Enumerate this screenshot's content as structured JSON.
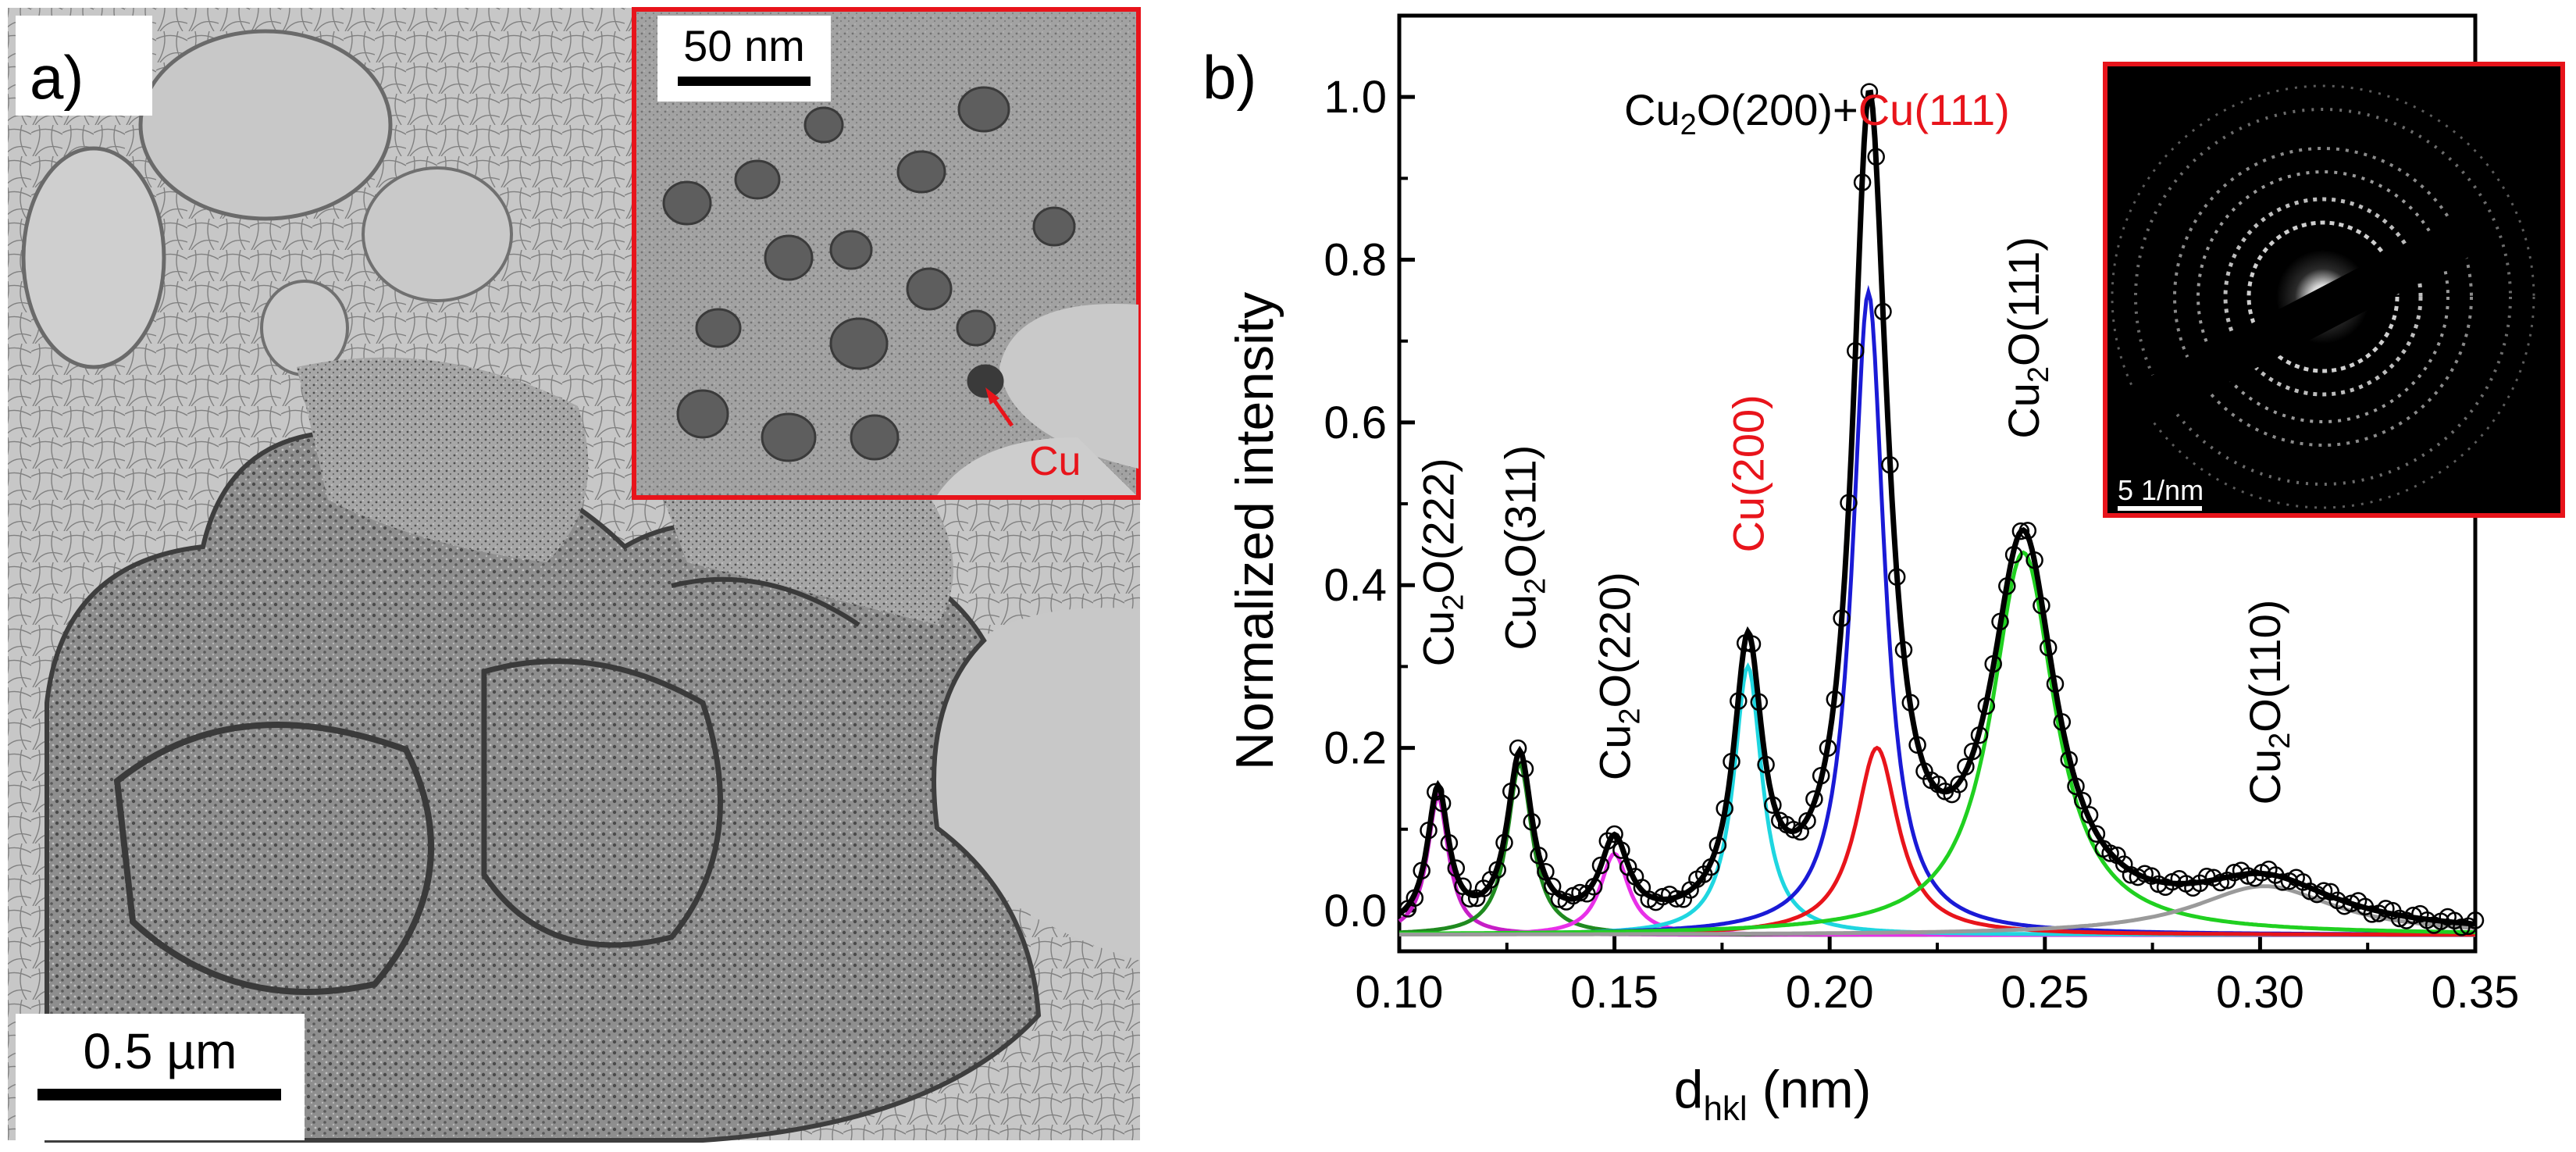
{
  "panel_a": {
    "label": "a)",
    "scale_bar": "0.5 µm",
    "inset": {
      "scale_bar": "50 nm",
      "annotation": "Cu"
    }
  },
  "panel_b": {
    "label": "b)",
    "saed_inset": {
      "scale_bar": "5 1/nm"
    },
    "peak_labels": [
      {
        "prefix": "Cu",
        "sub": "2",
        "suffix": "O(222)",
        "color": "#000000"
      },
      {
        "prefix": "Cu",
        "sub": "2",
        "suffix": "O(311)",
        "color": "#000000"
      },
      {
        "prefix": "Cu",
        "sub": "2",
        "suffix": "O(220)",
        "color": "#000000"
      },
      {
        "prefix": "Cu(200)",
        "sub": "",
        "suffix": "",
        "color": "#e8141b"
      },
      {
        "prefix": "Cu",
        "sub": "2",
        "suffix": "O(111)",
        "color": "#000000"
      },
      {
        "prefix": "Cu",
        "sub": "2",
        "suffix": "O(110)",
        "color": "#000000"
      }
    ],
    "top_label": {
      "black_prefix": "Cu",
      "black_sub": "2",
      "black_suffix": "O(200)+",
      "red_part": "Cu(111)"
    }
  },
  "chart_data": {
    "type": "line",
    "title": "",
    "xlabel_main": "d",
    "xlabel_sub": "hkl",
    "xlabel_unit": " (nm)",
    "ylabel": "Normalized intensity",
    "xlim": [
      0.1,
      0.35
    ],
    "ylim": [
      -0.05,
      1.1
    ],
    "x_ticks": [
      0.1,
      0.15,
      0.2,
      0.25,
      0.3,
      0.35
    ],
    "x_tick_labels": [
      "0.10",
      "0.15",
      "0.20",
      "0.25",
      "0.30",
      "0.35"
    ],
    "y_ticks": [
      0.0,
      0.2,
      0.4,
      0.6,
      0.8,
      1.0
    ],
    "y_tick_labels": [
      "0.0",
      "0.2",
      "0.4",
      "0.6",
      "0.8",
      "1.0"
    ],
    "baseline": -0.03,
    "components": [
      {
        "name": "Cu2O(222)",
        "color": "#c61ec6",
        "center": 0.109,
        "height": 0.17,
        "width": 0.003
      },
      {
        "name": "Cu2O(311)",
        "color": "#1f8a1f",
        "center": 0.128,
        "height": 0.21,
        "width": 0.0035
      },
      {
        "name": "Cu2O(220)",
        "color": "#e830e8",
        "center": 0.15,
        "height": 0.1,
        "width": 0.004
      },
      {
        "name": "Cu(200)",
        "color": "#1fd6e0",
        "center": 0.181,
        "height": 0.33,
        "width": 0.004
      },
      {
        "name": "Cu2O(200)",
        "color": "#1a1ad6",
        "center": 0.209,
        "height": 0.79,
        "width": 0.0045
      },
      {
        "name": "Cu(111)",
        "color": "#e8141b",
        "center": 0.211,
        "height": 0.23,
        "width": 0.006
      },
      {
        "name": "Cu2O(111)",
        "color": "#20d020",
        "center": 0.245,
        "height": 0.47,
        "width": 0.009
      },
      {
        "name": "Cu2O(110)",
        "color": "#9a9a9a",
        "center": 0.301,
        "height": 0.06,
        "width": 0.02
      }
    ],
    "fit_color": "#000000",
    "experimental_marker": "open-circle"
  }
}
